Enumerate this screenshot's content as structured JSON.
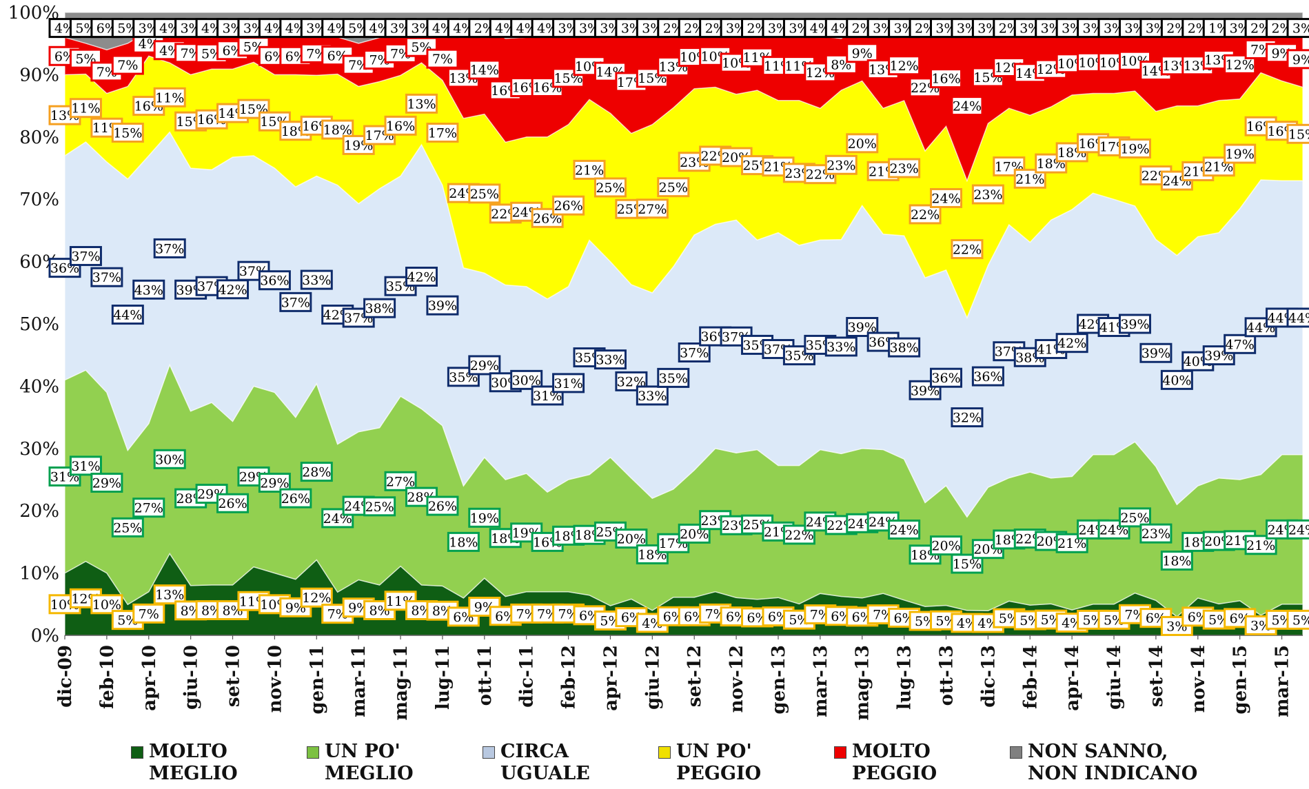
{
  "chart_data": {
    "type": "area",
    "stacked": true,
    "normalized": true,
    "yticks": [
      "0%",
      "10%",
      "20%",
      "30%",
      "40%",
      "50%",
      "60%",
      "70%",
      "80%",
      "90%",
      "100%"
    ],
    "ylim": [
      0,
      100
    ],
    "x_ticks": [
      "dic-09",
      "feb-10",
      "apr-10",
      "giu-10",
      "set-10",
      "nov-10",
      "gen-11",
      "mar-11",
      "mag-11",
      "lug-11",
      "ott-11",
      "dic-11",
      "feb-12",
      "apr-12",
      "giu-12",
      "set-12",
      "nov-12",
      "gen-13",
      "mar-13",
      "mag-13",
      "lug-13",
      "ott-13",
      "dic-13",
      "feb-14",
      "apr-14",
      "giu-14",
      "set-14",
      "nov-14",
      "gen-15",
      "mar-15"
    ],
    "grid": false,
    "legend_position": "bottom",
    "series": [
      {
        "name": "MOLTO MEGLIO",
        "color": "#0f5e14",
        "label_color": "#f5b800",
        "values": [
          10,
          12,
          10,
          5,
          7,
          13,
          8,
          8,
          8,
          11,
          10,
          9,
          12,
          7,
          9,
          8,
          11,
          8,
          8,
          6,
          9,
          6,
          7,
          7,
          7,
          6,
          5,
          6,
          4,
          6,
          6,
          7,
          6,
          6,
          6,
          5,
          7,
          6,
          6,
          7,
          6,
          5,
          5,
          4,
          4,
          5,
          5,
          5,
          4,
          5,
          5,
          7,
          6,
          3,
          6,
          5,
          6,
          3,
          5,
          5
        ]
      },
      {
        "name": "UN PO' MEGLIO",
        "color": "#92d050",
        "label_color": "#00a050",
        "values": [
          31,
          31,
          29,
          25,
          27,
          30,
          28,
          29,
          26,
          29,
          29,
          26,
          28,
          24,
          24,
          25,
          27,
          28,
          26,
          18,
          19,
          18,
          19,
          16,
          18,
          18,
          25,
          20,
          18,
          17,
          20,
          23,
          23,
          25,
          21,
          22,
          24,
          22,
          24,
          24,
          24,
          18,
          20,
          15,
          20,
          18,
          22,
          20,
          21,
          24,
          24,
          25,
          23,
          18,
          18,
          20,
          21,
          21,
          24,
          24
        ]
      },
      {
        "name": "CIRCA UGUALE",
        "color": "#dce9f8",
        "label_color": "#0e2b6b",
        "values": [
          36,
          37,
          37,
          44,
          43,
          37,
          39,
          37,
          42,
          37,
          36,
          37,
          33,
          42,
          37,
          38,
          35,
          42,
          39,
          35,
          29,
          30,
          30,
          31,
          31,
          35,
          33,
          32,
          33,
          35,
          37,
          36,
          37,
          35,
          37,
          35,
          35,
          33,
          39,
          36,
          38,
          39,
          36,
          32,
          36,
          37,
          38,
          41,
          42,
          42,
          41,
          39,
          39,
          40,
          40,
          39,
          47,
          44,
          44,
          44
        ]
      },
      {
        "name": "UN PO' PEGGIO",
        "color": "#ffff00",
        "label_color": "#f5a020",
        "values": [
          13,
          11,
          11,
          15,
          16,
          11,
          15,
          16,
          14,
          15,
          15,
          18,
          16,
          18,
          19,
          17,
          16,
          13,
          17,
          24,
          25,
          22,
          24,
          26,
          26,
          21,
          25,
          25,
          27,
          25,
          23,
          22,
          20,
          25,
          21,
          23,
          22,
          23,
          20,
          21,
          23,
          22,
          24,
          22,
          23,
          17,
          21,
          18,
          18,
          16,
          17,
          19,
          22,
          24,
          21,
          21,
          19,
          16,
          16,
          15
        ]
      },
      {
        "name": "MOLTO PEGGIO",
        "color": "#ee0000",
        "label_color": "#ee0000",
        "values": [
          6,
          5,
          7,
          7,
          4,
          4,
          7,
          5,
          6,
          5,
          6,
          6,
          7,
          6,
          7,
          7,
          7,
          5,
          7,
          13,
          14,
          16,
          16,
          16,
          15,
          10,
          14,
          17,
          15,
          13,
          10,
          10,
          10,
          11,
          11,
          11,
          12,
          8,
          9,
          13,
          12,
          22,
          16,
          24,
          15,
          12,
          14,
          12,
          10,
          10,
          10,
          10,
          14,
          13,
          13,
          13,
          12,
          7,
          9,
          9
        ]
      },
      {
        "name": "NON SANNO, NON INDICANO",
        "color": "#8c8c8c",
        "label_color": "#000000",
        "values": [
          4,
          5,
          6,
          5,
          3,
          4,
          3,
          4,
          3,
          3,
          4,
          4,
          3,
          4,
          5,
          4,
          3,
          3,
          4,
          4,
          2,
          4,
          4,
          4,
          3,
          3,
          3,
          3,
          3,
          2,
          2,
          2,
          3,
          2,
          3,
          3,
          4,
          4,
          2,
          3,
          3,
          2,
          3,
          3,
          3,
          2,
          3,
          3,
          3,
          3,
          3,
          3,
          3,
          2,
          2,
          1,
          3,
          2,
          2,
          3
        ]
      }
    ]
  },
  "legend": {
    "items": [
      {
        "label": "MOLTO\nMEGLIO",
        "color": "#0f5e14"
      },
      {
        "label": "UN PO'\nMEGLIO",
        "color": "#7cc142"
      },
      {
        "label": "CIRCA\nUGUALE",
        "color": "#b8c8e0"
      },
      {
        "label": "UN PO'\nPEGGIO",
        "color": "#f0e000"
      },
      {
        "label": "MOLTO\nPEGGIO",
        "color": "#ee0000"
      },
      {
        "label": "NON SANNO,\nNON INDICANO",
        "color": "#808080"
      }
    ]
  }
}
